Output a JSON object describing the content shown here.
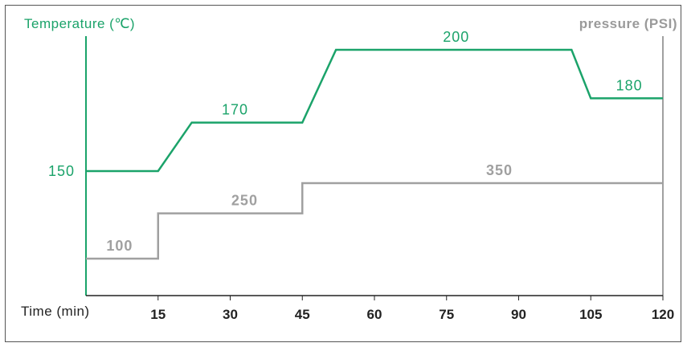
{
  "chart_data": {
    "type": "line",
    "x": [
      0,
      15,
      22,
      45,
      52,
      101,
      105,
      120
    ],
    "xticks": [
      "15",
      "30",
      "45",
      "60",
      "75",
      "90",
      "105",
      "120"
    ],
    "xlabel": "Time (min)",
    "ylabel_left": "Temperature (℃)",
    "ylabel_right": "pressure (PSI)",
    "series": [
      {
        "name": "Temperature",
        "color": "#1ba36a",
        "points": [
          [
            0,
            150
          ],
          [
            15,
            150
          ],
          [
            22,
            170
          ],
          [
            45,
            170
          ],
          [
            52,
            200
          ],
          [
            101,
            200
          ],
          [
            105,
            180
          ],
          [
            120,
            180
          ]
        ],
        "labels": [
          {
            "text": "150",
            "x": 0,
            "y": 150,
            "pos": "left"
          },
          {
            "text": "170",
            "x": 31,
            "y": 170,
            "pos": "above"
          },
          {
            "text": "200",
            "x": 77,
            "y": 200,
            "pos": "above"
          },
          {
            "text": "180",
            "x": 113,
            "y": 180,
            "pos": "above"
          }
        ]
      },
      {
        "name": "Pressure",
        "color": "#a0a0a0",
        "points": [
          [
            0,
            100
          ],
          [
            15,
            100
          ],
          [
            15,
            250
          ],
          [
            45,
            250
          ],
          [
            45,
            350
          ],
          [
            120,
            350
          ]
        ],
        "labels": [
          {
            "text": "100",
            "x": 7,
            "y": 100,
            "pos": "above"
          },
          {
            "text": "250",
            "x": 33,
            "y": 250,
            "pos": "above"
          },
          {
            "text": "350",
            "x": 86,
            "y": 350,
            "pos": "above"
          }
        ]
      }
    ],
    "xlim": [
      0,
      120
    ],
    "temp_ylim": [
      120,
      215
    ],
    "pressure_ylim": [
      0,
      430
    ]
  }
}
